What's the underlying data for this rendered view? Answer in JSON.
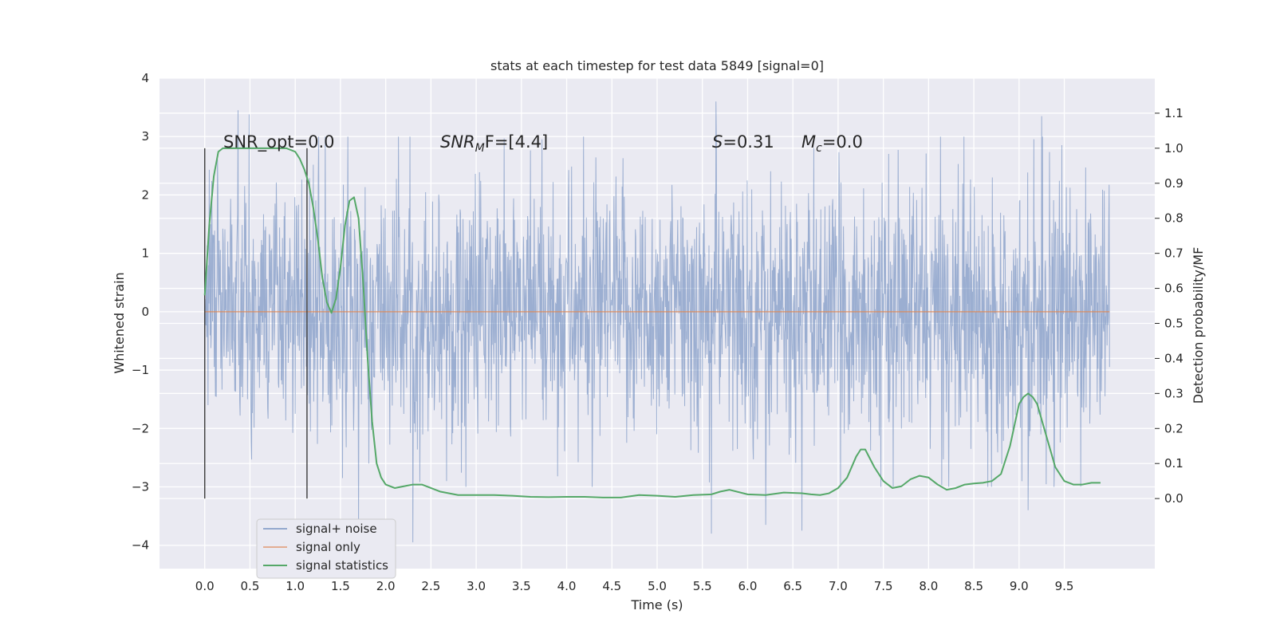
{
  "chart_data": {
    "type": "line",
    "title": "stats at each timestep for test data 5849 [signal=0]",
    "xlabel": "Time (s)",
    "ylabel": "Whitened strain",
    "y2label": "Detection probability/MF",
    "xlim": [
      -0.5,
      10.5
    ],
    "ylim": [
      -4.4,
      4
    ],
    "y2lim": [
      -0.2,
      1.2
    ],
    "x_ticks": [
      0.0,
      0.5,
      1.0,
      1.5,
      2.0,
      2.5,
      3.0,
      3.5,
      4.0,
      4.5,
      5.0,
      5.5,
      6.0,
      6.5,
      7.0,
      7.5,
      8.0,
      8.5,
      9.0,
      9.5
    ],
    "x_tick_labels": [
      "0.0",
      "0.5",
      "1.0",
      "1.5",
      "2.0",
      "2.5",
      "3.0",
      "3.5",
      "4.0",
      "4.5",
      "5.0",
      "5.5",
      "6.0",
      "6.5",
      "7.0",
      "7.5",
      "8.0",
      "8.5",
      "9.0",
      "9.5"
    ],
    "y_ticks": [
      -4,
      -3,
      -2,
      -1,
      0,
      1,
      2,
      3,
      4
    ],
    "y_tick_labels": [
      "−4",
      "−3",
      "−2",
      "−1",
      "0",
      "1",
      "2",
      "3",
      "4"
    ],
    "y2_ticks": [
      0.0,
      0.1,
      0.2,
      0.3,
      0.4,
      0.5,
      0.6,
      0.7,
      0.8,
      0.9,
      1.0,
      1.1
    ],
    "y2_tick_labels": [
      "0.0",
      "0.1",
      "0.2",
      "0.3",
      "0.4",
      "0.5",
      "0.6",
      "0.7",
      "0.8",
      "0.9",
      "1.0",
      "1.1"
    ],
    "grid": true,
    "legend_position": "lower-left",
    "annotations": {
      "snr_opt": "SNR_opt=0.0",
      "snr_mf_sym": "SNR",
      "snr_mf_sub": "M",
      "snr_mf_rest": "F=[4.4]",
      "s_sym": "S",
      "s_rest": "=0.31",
      "mc_sym": "M",
      "mc_sub": "c",
      "mc_rest": "=0.0"
    },
    "vertical_markers": [
      {
        "x": 0.0,
        "y_from": -3.2,
        "y_to": 2.8
      },
      {
        "x": 1.13,
        "y_from": -3.2,
        "y_to": 2.8
      }
    ],
    "series": [
      {
        "name": "signal+ noise",
        "axis": "left",
        "color": "#4c72b0",
        "x_range": [
          0.0,
          10.0
        ],
        "core_amplitude": 1.2,
        "peak_amplitude": 2.3,
        "extreme_values": [
          {
            "x": 0.37,
            "y": 3.45
          },
          {
            "x": 0.49,
            "y": 3.38
          },
          {
            "x": 5.65,
            "y": 3.6
          },
          {
            "x": 9.25,
            "y": 3.35
          },
          {
            "x": 2.3,
            "y": -3.95
          },
          {
            "x": 5.6,
            "y": -3.8
          },
          {
            "x": 6.6,
            "y": -3.75
          },
          {
            "x": 1.7,
            "y": -3.7
          },
          {
            "x": 9.1,
            "y": -3.4
          },
          {
            "x": 6.2,
            "y": -3.65
          }
        ]
      },
      {
        "name": "signal only",
        "axis": "left",
        "color": "#dd8452",
        "x": [
          0.0,
          10.0
        ],
        "values": [
          0.0,
          0.0
        ]
      },
      {
        "name": "signal statistics",
        "axis": "right",
        "color": "#55a868",
        "x": [
          0.0,
          0.05,
          0.1,
          0.15,
          0.2,
          0.3,
          0.4,
          0.5,
          0.6,
          0.7,
          0.8,
          0.9,
          1.0,
          1.05,
          1.1,
          1.15,
          1.2,
          1.25,
          1.3,
          1.35,
          1.4,
          1.45,
          1.5,
          1.55,
          1.6,
          1.65,
          1.7,
          1.75,
          1.8,
          1.85,
          1.9,
          1.95,
          2.0,
          2.1,
          2.2,
          2.3,
          2.4,
          2.5,
          2.6,
          2.8,
          3.0,
          3.2,
          3.4,
          3.6,
          3.8,
          4.0,
          4.2,
          4.4,
          4.6,
          4.8,
          5.0,
          5.2,
          5.4,
          5.6,
          5.7,
          5.8,
          6.0,
          6.2,
          6.4,
          6.6,
          6.7,
          6.8,
          6.9,
          7.0,
          7.1,
          7.2,
          7.25,
          7.3,
          7.4,
          7.5,
          7.6,
          7.7,
          7.8,
          7.9,
          8.0,
          8.1,
          8.2,
          8.3,
          8.4,
          8.5,
          8.6,
          8.7,
          8.8,
          8.9,
          9.0,
          9.05,
          9.1,
          9.15,
          9.2,
          9.3,
          9.4,
          9.5,
          9.6,
          9.7,
          9.8,
          9.9
        ],
        "values": [
          0.58,
          0.78,
          0.92,
          0.99,
          1.0,
          1.0,
          1.0,
          1.0,
          1.0,
          1.0,
          1.0,
          1.0,
          0.99,
          0.97,
          0.94,
          0.9,
          0.83,
          0.74,
          0.63,
          0.56,
          0.53,
          0.57,
          0.66,
          0.78,
          0.85,
          0.86,
          0.8,
          0.62,
          0.4,
          0.22,
          0.1,
          0.06,
          0.04,
          0.03,
          0.035,
          0.04,
          0.04,
          0.03,
          0.02,
          0.01,
          0.01,
          0.01,
          0.008,
          0.005,
          0.004,
          0.005,
          0.005,
          0.003,
          0.003,
          0.01,
          0.008,
          0.005,
          0.01,
          0.012,
          0.02,
          0.025,
          0.012,
          0.01,
          0.017,
          0.015,
          0.012,
          0.01,
          0.015,
          0.03,
          0.06,
          0.12,
          0.14,
          0.14,
          0.09,
          0.05,
          0.03,
          0.035,
          0.055,
          0.065,
          0.06,
          0.04,
          0.025,
          0.03,
          0.04,
          0.043,
          0.045,
          0.05,
          0.07,
          0.15,
          0.27,
          0.29,
          0.3,
          0.29,
          0.27,
          0.18,
          0.09,
          0.05,
          0.04,
          0.04,
          0.045,
          0.045
        ]
      }
    ]
  }
}
